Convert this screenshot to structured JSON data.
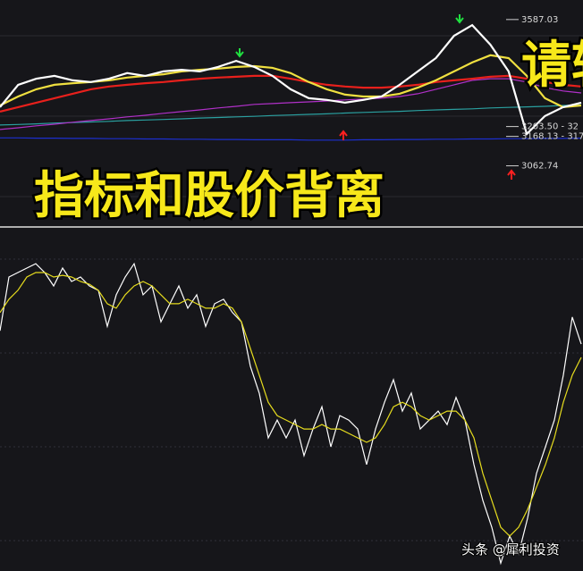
{
  "chart_data": [
    {
      "type": "line",
      "ylim": [
        2850,
        3657
      ],
      "series": [
        {
          "color": "#1c2fd0",
          "values": [
            3163,
            3163,
            3162,
            3162,
            3161,
            3161,
            3160,
            3160,
            3159,
            3159,
            3158,
            3158,
            3157,
            3157,
            3156,
            3156,
            3156,
            3155,
            3155,
            3155,
            3156,
            3156,
            3157,
            3157,
            3158,
            3158,
            3159,
            3159,
            3160,
            3160,
            3161,
            3161,
            3162
          ]
        },
        {
          "color": "#2aa0a0",
          "values": [
            3209,
            3211,
            3213,
            3216,
            3218,
            3220,
            3222,
            3225,
            3227,
            3229,
            3231,
            3234,
            3236,
            3238,
            3240,
            3243,
            3245,
            3247,
            3249,
            3252,
            3254,
            3256,
            3258,
            3261,
            3263,
            3265,
            3267,
            3270,
            3272,
            3274,
            3276,
            3279,
            3281
          ]
        },
        {
          "color": "#b030c8",
          "values": [
            3193,
            3199,
            3206,
            3212,
            3219,
            3225,
            3231,
            3238,
            3244,
            3251,
            3257,
            3263,
            3270,
            3276,
            3283,
            3286,
            3289,
            3292,
            3295,
            3299,
            3302,
            3305,
            3311,
            3321,
            3337,
            3353,
            3369,
            3375,
            3375,
            3363,
            3343,
            3331,
            3324
          ]
        },
        {
          "color": "#e8201c",
          "values": [
            3257,
            3273,
            3289,
            3305,
            3321,
            3337,
            3347,
            3353,
            3359,
            3363,
            3369,
            3375,
            3379,
            3382,
            3385,
            3385,
            3375,
            3363,
            3353,
            3347,
            3343,
            3343,
            3347,
            3353,
            3363,
            3369,
            3375,
            3382,
            3385,
            3375,
            3363,
            3353,
            3347
          ]
        },
        {
          "color": "#f0e040",
          "values": [
            3279,
            3311,
            3337,
            3353,
            3359,
            3363,
            3369,
            3379,
            3385,
            3391,
            3401,
            3407,
            3411,
            3417,
            3420,
            3414,
            3395,
            3363,
            3337,
            3318,
            3311,
            3311,
            3321,
            3343,
            3369,
            3401,
            3433,
            3459,
            3449,
            3385,
            3305,
            3273,
            3279
          ]
        },
        {
          "color": "#ffffff",
          "values": [
            3273,
            3353,
            3375,
            3385,
            3369,
            3363,
            3375,
            3395,
            3385,
            3401,
            3407,
            3401,
            3417,
            3439,
            3417,
            3385,
            3337,
            3305,
            3299,
            3289,
            3299,
            3311,
            3353,
            3401,
            3449,
            3529,
            3567,
            3497,
            3401,
            3177,
            3241,
            3273,
            3289
          ]
        }
      ],
      "price_labels": [
        3587.03,
        {
          "value": 3203.5,
          "label": "3203.50 - 32"
        },
        {
          "value": 3168.13,
          "label": "3168.13 - 317"
        },
        3062.74
      ],
      "overlay_title": "指标和股价背离",
      "corner_text": "请转"
    },
    {
      "type": "line",
      "ylim": [
        0,
        100
      ],
      "series": [
        {
          "color": "#ffffff",
          "values": [
            70.2,
            85.9,
            87.2,
            88.5,
            89.8,
            87.2,
            83.3,
            88.5,
            84.6,
            85.9,
            83.3,
            82.0,
            71.5,
            80.7,
            85.9,
            89.8,
            80.7,
            83.3,
            72.8,
            78.1,
            83.3,
            76.8,
            80.7,
            71.5,
            78.1,
            79.4,
            75.5,
            72.8,
            59.8,
            51.9,
            38.9,
            44.1,
            38.9,
            44.1,
            33.7,
            41.5,
            48.0,
            36.3,
            45.4,
            44.1,
            41.5,
            31.1,
            41.5,
            49.3,
            55.9,
            46.7,
            52.0,
            41.5,
            44.1,
            46.7,
            42.8,
            50.7,
            44.1,
            31.1,
            20.6,
            12.8,
            2.3,
            10.2,
            5.0,
            15.4,
            28.5,
            36.3,
            44.1,
            57.2,
            74.2,
            66.3
          ]
        },
        {
          "color": "#e6dc1e",
          "values": [
            75.5,
            79.4,
            82.0,
            85.9,
            87.2,
            87.2,
            85.9,
            86.4,
            85.9,
            84.6,
            83.8,
            82.0,
            78.1,
            76.8,
            80.7,
            83.3,
            84.6,
            83.3,
            80.7,
            78.1,
            78.1,
            79.4,
            78.1,
            76.8,
            76.8,
            78.1,
            76.8,
            72.8,
            65.0,
            57.2,
            49.3,
            45.4,
            44.1,
            42.8,
            41.5,
            41.5,
            42.8,
            41.5,
            41.5,
            40.2,
            38.9,
            37.6,
            38.9,
            42.8,
            48.0,
            49.3,
            48.0,
            45.4,
            44.1,
            45.4,
            46.7,
            46.7,
            44.1,
            38.9,
            28.5,
            20.6,
            12.8,
            10.2,
            12.8,
            18.0,
            24.5,
            31.1,
            38.9,
            49.3,
            57.2,
            62.4
          ]
        }
      ],
      "watermark": "头条 @犀利投资"
    }
  ]
}
